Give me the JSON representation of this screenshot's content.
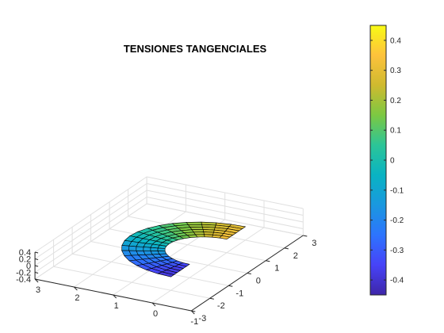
{
  "chart_data": {
    "type": "surface3d",
    "title": "TENSIONES TANGENCIALES",
    "xlabel": "",
    "ylabel": "",
    "zlabel": "",
    "xlim": [
      -1,
      3
    ],
    "ylim": [
      -3,
      3
    ],
    "zlim": [
      -0.4,
      0.4
    ],
    "x_ticks": [
      "-1",
      "0",
      "1",
      "2",
      "3"
    ],
    "y_ticks": [
      "-3",
      "-2",
      "-1",
      "0",
      "1",
      "2",
      "3"
    ],
    "z_ticks": [
      "0.4",
      "0.2",
      "0",
      "-0.2",
      "-0.4"
    ],
    "grid": true,
    "surface": {
      "shape": "half-annulus",
      "inner_radius": 1,
      "outer_radius": 2,
      "theta_deg": [
        -90,
        90
      ],
      "radial_divisions": 6,
      "angular_divisions": 18,
      "value_min": -0.4,
      "value_max": 0.4
    },
    "colorbar": {
      "position": "right",
      "range": [
        -0.45,
        0.45
      ],
      "ticks": [
        "0.4",
        "0.3",
        "0.2",
        "0.1",
        "0",
        "-0.1",
        "-0.2",
        "-0.3",
        "-0.4"
      ],
      "colormap": [
        "#3e26a8",
        "#4743f8",
        "#2d74fe",
        "#1a98df",
        "#09b3c3",
        "#2cc597",
        "#7cc842",
        "#cfba2f",
        "#fdc23c",
        "#f9fb15"
      ]
    }
  }
}
